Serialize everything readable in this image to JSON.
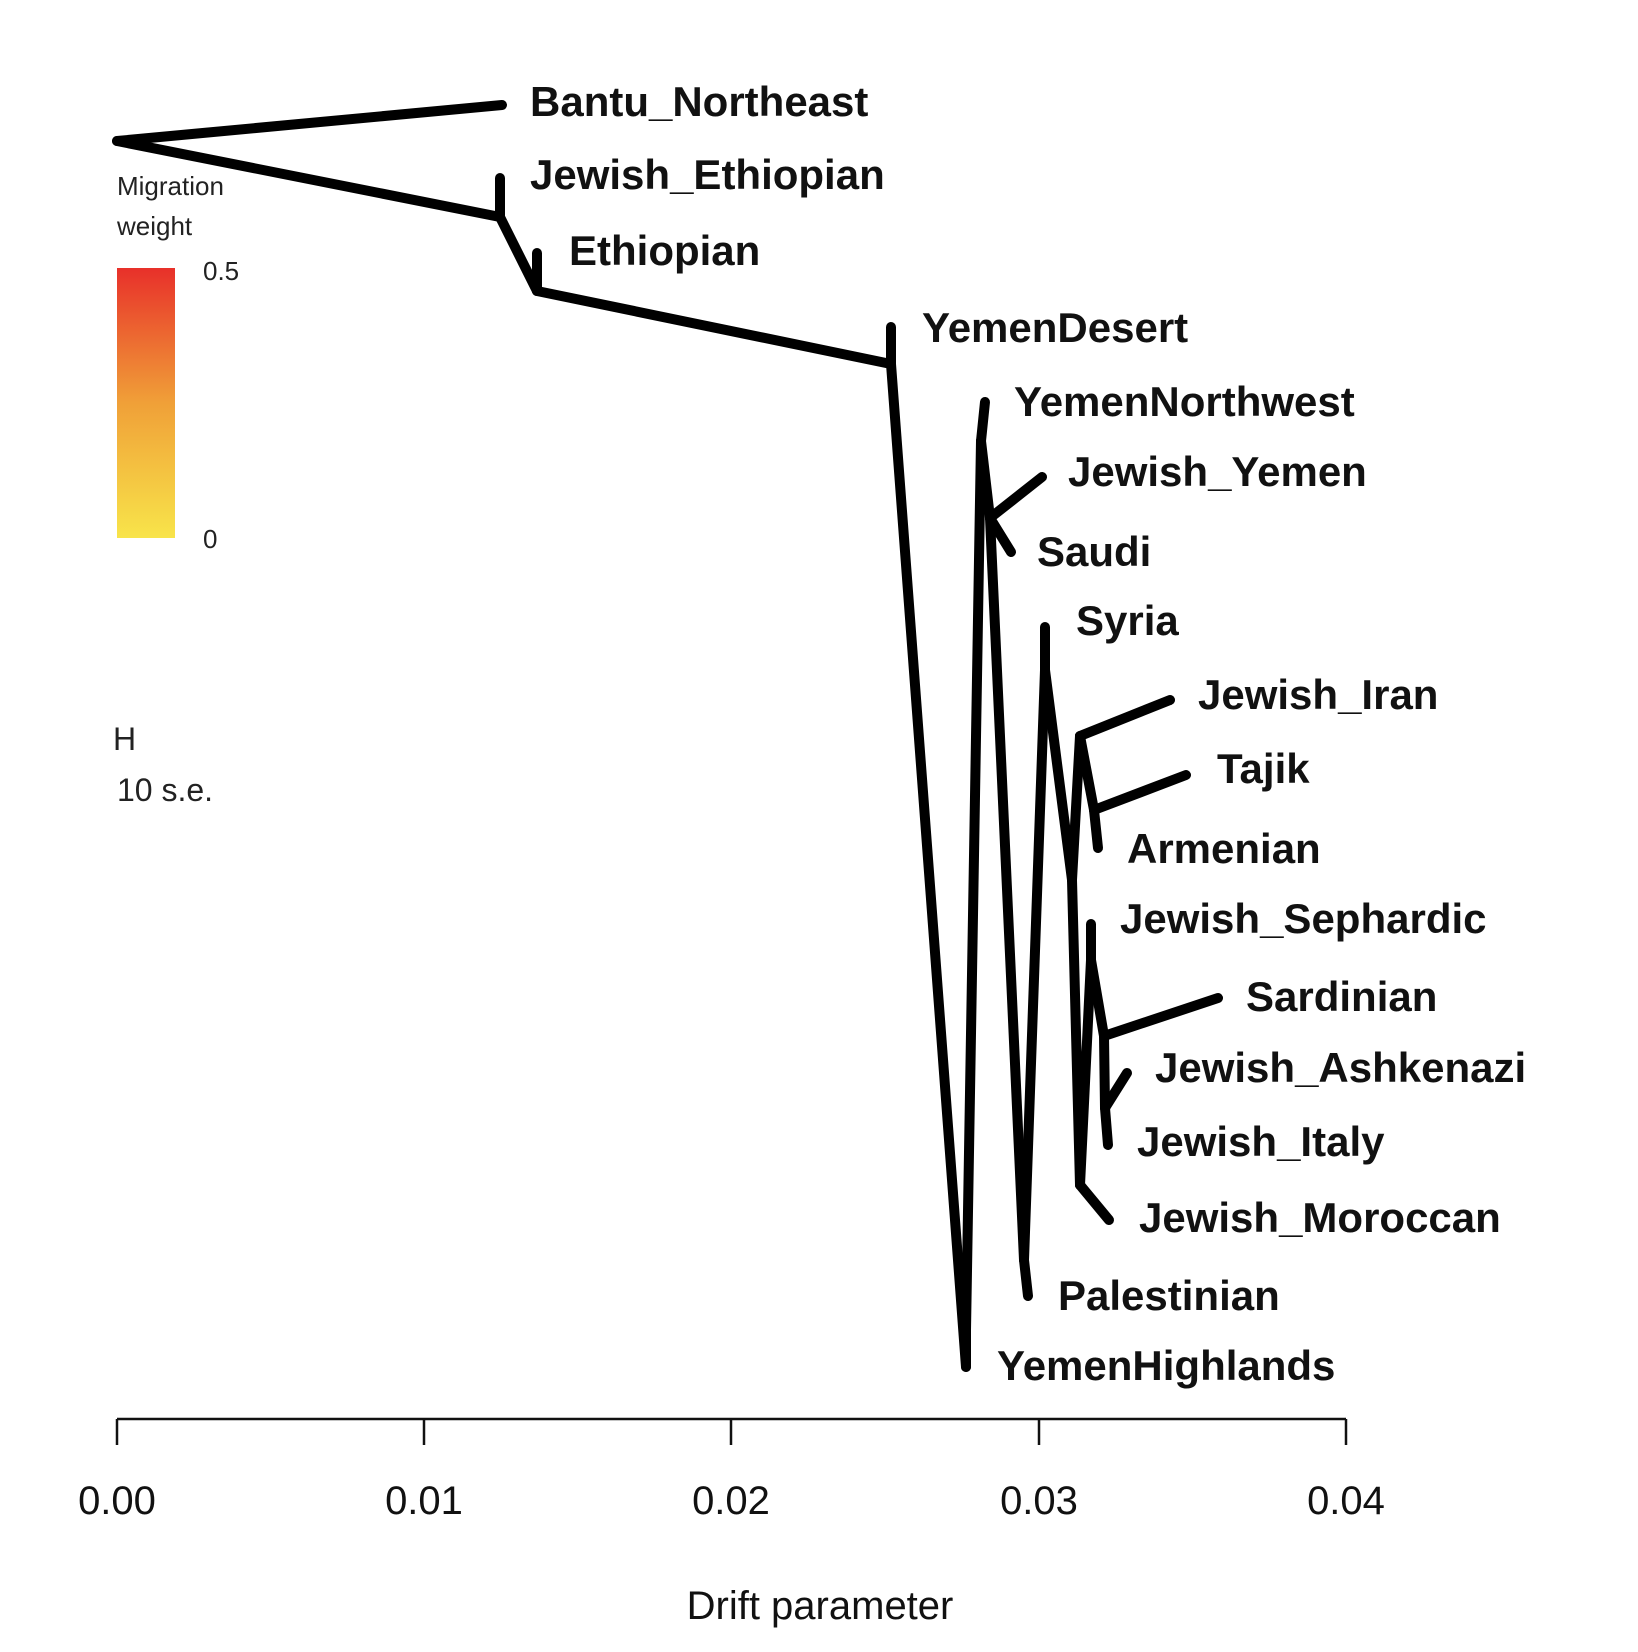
{
  "tree": {
    "leaves": [
      "Bantu_Northeast",
      "Jewish_Ethiopian",
      "Ethiopian",
      "YemenDesert",
      "YemenNorthwest",
      "Jewish_Yemen",
      "Saudi",
      "Syria",
      "Jewish_Iran",
      "Tajik",
      "Armenian",
      "Jewish_Sephardic",
      "Sardinian",
      "Jewish_Ashkenazi",
      "Jewish_Italy",
      "Jewish_Moroccan",
      "Palestinian",
      "YemenHighlands"
    ],
    "branch_color": "#000000"
  },
  "legend": {
    "title_line1": "Migration",
    "title_line2": "weight",
    "max_label": "0.5",
    "min_label": "0",
    "color_high": "#e8302a",
    "color_mid": "#f0a038",
    "color_low": "#f8e44a"
  },
  "scale_bar": {
    "glyph": "H",
    "label": "10 s.e."
  },
  "axis": {
    "title": "Drift parameter",
    "ticks": [
      "0.00",
      "0.01",
      "0.02",
      "0.03",
      "0.04"
    ],
    "range": [
      0.0,
      0.04
    ]
  }
}
